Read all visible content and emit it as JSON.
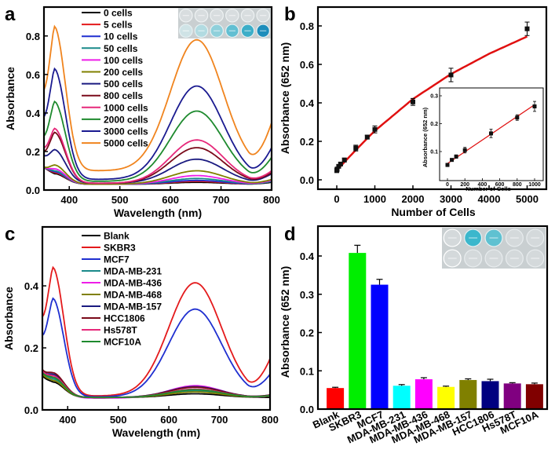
{
  "chart_data": [
    {
      "panel": "a",
      "type": "line",
      "title": "",
      "xlabel": "Wavelength (nm)",
      "ylabel": "Absorbance",
      "xlim": [
        350,
        800
      ],
      "ylim": [
        0.0,
        0.95
      ],
      "xticks": [
        "400",
        "500",
        "600",
        "700",
        "800"
      ],
      "yticks": [
        "0.0",
        "0.2",
        "0.4",
        "0.6",
        "0.8"
      ],
      "legend_position": "top-left",
      "inset": "photo of well plate, 2 rows x 6 wells, bottom row increasingly blue",
      "series": [
        {
          "name": "0 cells",
          "color": "#000000",
          "start": 0.12,
          "peak370": 0.085,
          "trough": 0.03,
          "peak652": 0.04,
          "end": 0.04
        },
        {
          "name": "5 cells",
          "color": "#e41a1c",
          "start": 0.12,
          "peak370": 0.09,
          "trough": 0.03,
          "peak652": 0.045,
          "end": 0.045
        },
        {
          "name": "10 cells",
          "color": "#1f2fd0",
          "start": 0.12,
          "peak370": 0.095,
          "trough": 0.03,
          "peak652": 0.05,
          "end": 0.045
        },
        {
          "name": "50 cells",
          "color": "#1a8a8a",
          "start": 0.12,
          "peak370": 0.1,
          "trough": 0.03,
          "peak652": 0.06,
          "end": 0.045
        },
        {
          "name": "100 cells",
          "color": "#ee1ee8",
          "start": 0.12,
          "peak370": 0.11,
          "trough": 0.03,
          "peak652": 0.075,
          "end": 0.05
        },
        {
          "name": "200 cells",
          "color": "#808000",
          "start": 0.12,
          "peak370": 0.13,
          "trough": 0.03,
          "peak652": 0.1,
          "end": 0.055
        },
        {
          "name": "500 cells",
          "color": "#1a1a80",
          "start": 0.18,
          "peak370": 0.21,
          "trough": 0.035,
          "peak652": 0.16,
          "end": 0.085
        },
        {
          "name": "800 cells",
          "color": "#7a0a1a",
          "start": 0.2,
          "peak370": 0.3,
          "trough": 0.035,
          "peak652": 0.22,
          "end": 0.09
        },
        {
          "name": "1000 cells",
          "color": "#e6287a",
          "start": 0.22,
          "peak370": 0.32,
          "trough": 0.035,
          "peak652": 0.26,
          "end": 0.1
        },
        {
          "name": "2000 cells",
          "color": "#1e8a2e",
          "start": 0.28,
          "peak370": 0.46,
          "trough": 0.045,
          "peak652": 0.41,
          "end": 0.17
        },
        {
          "name": "3000 cells",
          "color": "#1a1a90",
          "start": 0.38,
          "peak370": 0.63,
          "trough": 0.055,
          "peak652": 0.54,
          "end": 0.22
        },
        {
          "name": "5000 cells",
          "color": "#f0841e",
          "start": 0.52,
          "peak370": 0.85,
          "trough": 0.1,
          "peak652": 0.78,
          "end": 0.35
        }
      ]
    },
    {
      "panel": "b",
      "type": "scatter",
      "title": "",
      "xlabel": "Number of Cells",
      "ylabel": "Absorbance (652 nm)",
      "xlim": [
        -350,
        5450
      ],
      "ylim": [
        -0.06,
        0.89
      ],
      "xticks": [
        "0",
        "1000",
        "2000",
        "3000",
        "4000",
        "5000"
      ],
      "yticks": [
        "0.0",
        "0.2",
        "0.4",
        "0.6",
        "0.8"
      ],
      "fit_color": "#e01010",
      "points": [
        {
          "x": 0,
          "y": 0.048,
          "err": 0.01
        },
        {
          "x": 5,
          "y": 0.052,
          "err": 0.008
        },
        {
          "x": 10,
          "y": 0.056,
          "err": 0.008
        },
        {
          "x": 50,
          "y": 0.07,
          "err": 0.008
        },
        {
          "x": 100,
          "y": 0.082,
          "err": 0.008
        },
        {
          "x": 200,
          "y": 0.103,
          "err": 0.01
        },
        {
          "x": 500,
          "y": 0.165,
          "err": 0.015
        },
        {
          "x": 800,
          "y": 0.222,
          "err": 0.01
        },
        {
          "x": 1000,
          "y": 0.262,
          "err": 0.018
        },
        {
          "x": 2000,
          "y": 0.405,
          "err": 0.018
        },
        {
          "x": 3000,
          "y": 0.545,
          "err": 0.035
        },
        {
          "x": 5000,
          "y": 0.785,
          "err": 0.035
        }
      ],
      "fit_curve": [
        [
          0,
          0.05
        ],
        [
          500,
          0.155
        ],
        [
          1000,
          0.255
        ],
        [
          2000,
          0.42
        ],
        [
          3000,
          0.55
        ],
        [
          4000,
          0.655
        ],
        [
          5000,
          0.745
        ]
      ],
      "inset": {
        "xlabel": "Number of Cells",
        "ylabel": "Absorbance (652 nm)",
        "xlim": [
          -60,
          1080
        ],
        "ylim": [
          0.04,
          0.315
        ],
        "xticks": [
          "0",
          "200",
          "400",
          "600",
          "800",
          "1000"
        ],
        "yticks": [
          "0.1",
          "0.2",
          "0.3"
        ],
        "points": [
          {
            "x": 0,
            "y": 0.052,
            "err": 0.006
          },
          {
            "x": 50,
            "y": 0.07,
            "err": 0.005
          },
          {
            "x": 100,
            "y": 0.082,
            "err": 0.006
          },
          {
            "x": 200,
            "y": 0.105,
            "err": 0.01
          },
          {
            "x": 500,
            "y": 0.165,
            "err": 0.015
          },
          {
            "x": 800,
            "y": 0.222,
            "err": 0.01
          },
          {
            "x": 1000,
            "y": 0.262,
            "err": 0.018
          }
        ],
        "fit_line": [
          [
            0,
            0.057
          ],
          [
            1000,
            0.268
          ]
        ]
      }
    },
    {
      "panel": "c",
      "type": "line",
      "title": "",
      "xlabel": "Wavelength (nm)",
      "ylabel": "Absorbance",
      "xlim": [
        350,
        800
      ],
      "ylim": [
        0.0,
        0.59
      ],
      "xticks": [
        "400",
        "500",
        "600",
        "700",
        "800"
      ],
      "yticks": [
        "0.0",
        "0.2",
        "0.4"
      ],
      "legend_position": "top-left",
      "series": [
        {
          "name": "Blank",
          "color": "#000000",
          "start": 0.11,
          "peak370": 0.09,
          "trough": 0.04,
          "peak652": 0.052,
          "end": 0.04
        },
        {
          "name": "SKBR3",
          "color": "#e41a1c",
          "start": 0.3,
          "peak370": 0.46,
          "trough": 0.045,
          "peak652": 0.41,
          "end": 0.165
        },
        {
          "name": "MCF7",
          "color": "#1f2fd0",
          "start": 0.24,
          "peak370": 0.36,
          "trough": 0.042,
          "peak652": 0.325,
          "end": 0.115
        },
        {
          "name": "MDA-MB-231",
          "color": "#1a8a8a",
          "start": 0.12,
          "peak370": 0.1,
          "trough": 0.04,
          "peak652": 0.062,
          "end": 0.045
        },
        {
          "name": "MDA-MB-436",
          "color": "#ee1ee8",
          "start": 0.12,
          "peak370": 0.11,
          "trough": 0.038,
          "peak652": 0.078,
          "end": 0.045
        },
        {
          "name": "MDA-MB-468",
          "color": "#808000",
          "start": 0.115,
          "peak370": 0.095,
          "trough": 0.04,
          "peak652": 0.058,
          "end": 0.045
        },
        {
          "name": "MDA-MB-157",
          "color": "#1a1a80",
          "start": 0.125,
          "peak370": 0.115,
          "trough": 0.04,
          "peak652": 0.075,
          "end": 0.048
        },
        {
          "name": "HCC1806",
          "color": "#7a0a1a",
          "start": 0.13,
          "peak370": 0.12,
          "trough": 0.04,
          "peak652": 0.073,
          "end": 0.048
        },
        {
          "name": "Hs578T",
          "color": "#e6287a",
          "start": 0.125,
          "peak370": 0.11,
          "trough": 0.04,
          "peak652": 0.067,
          "end": 0.046
        },
        {
          "name": "MCF10A",
          "color": "#1e8a2e",
          "start": 0.12,
          "peak370": 0.105,
          "trough": 0.04,
          "peak652": 0.065,
          "end": 0.046
        }
      ]
    },
    {
      "panel": "d",
      "type": "bar",
      "title": "",
      "xlabel": "",
      "ylabel": "Absorbance (652 nm)",
      "ylim": [
        0.0,
        0.475
      ],
      "yticks": [
        "0.0",
        "0.1",
        "0.2",
        "0.3",
        "0.4"
      ],
      "inset": "photo of well plate, 2 rows x 5 wells, wells 2 and 3 of top row blue",
      "categories": [
        "Blank",
        "SKBR3",
        "MCF7",
        "MDA-MB-231",
        "MDA-MB-436",
        "MDA-MB-468",
        "MDA-MB-157",
        "HCC1806",
        "Hs578T",
        "MCF10A"
      ],
      "values": [
        0.055,
        0.408,
        0.325,
        0.061,
        0.078,
        0.058,
        0.076,
        0.073,
        0.067,
        0.065
      ],
      "errors": [
        0.002,
        0.02,
        0.014,
        0.003,
        0.004,
        0.002,
        0.003,
        0.005,
        0.002,
        0.003
      ],
      "colors": [
        "#ff0000",
        "#00ee00",
        "#0000ff",
        "#00ffff",
        "#ff00ff",
        "#ffff00",
        "#808000",
        "#000080",
        "#800080",
        "#800000"
      ]
    }
  ],
  "panel_labels": [
    "a",
    "b",
    "c",
    "d"
  ]
}
